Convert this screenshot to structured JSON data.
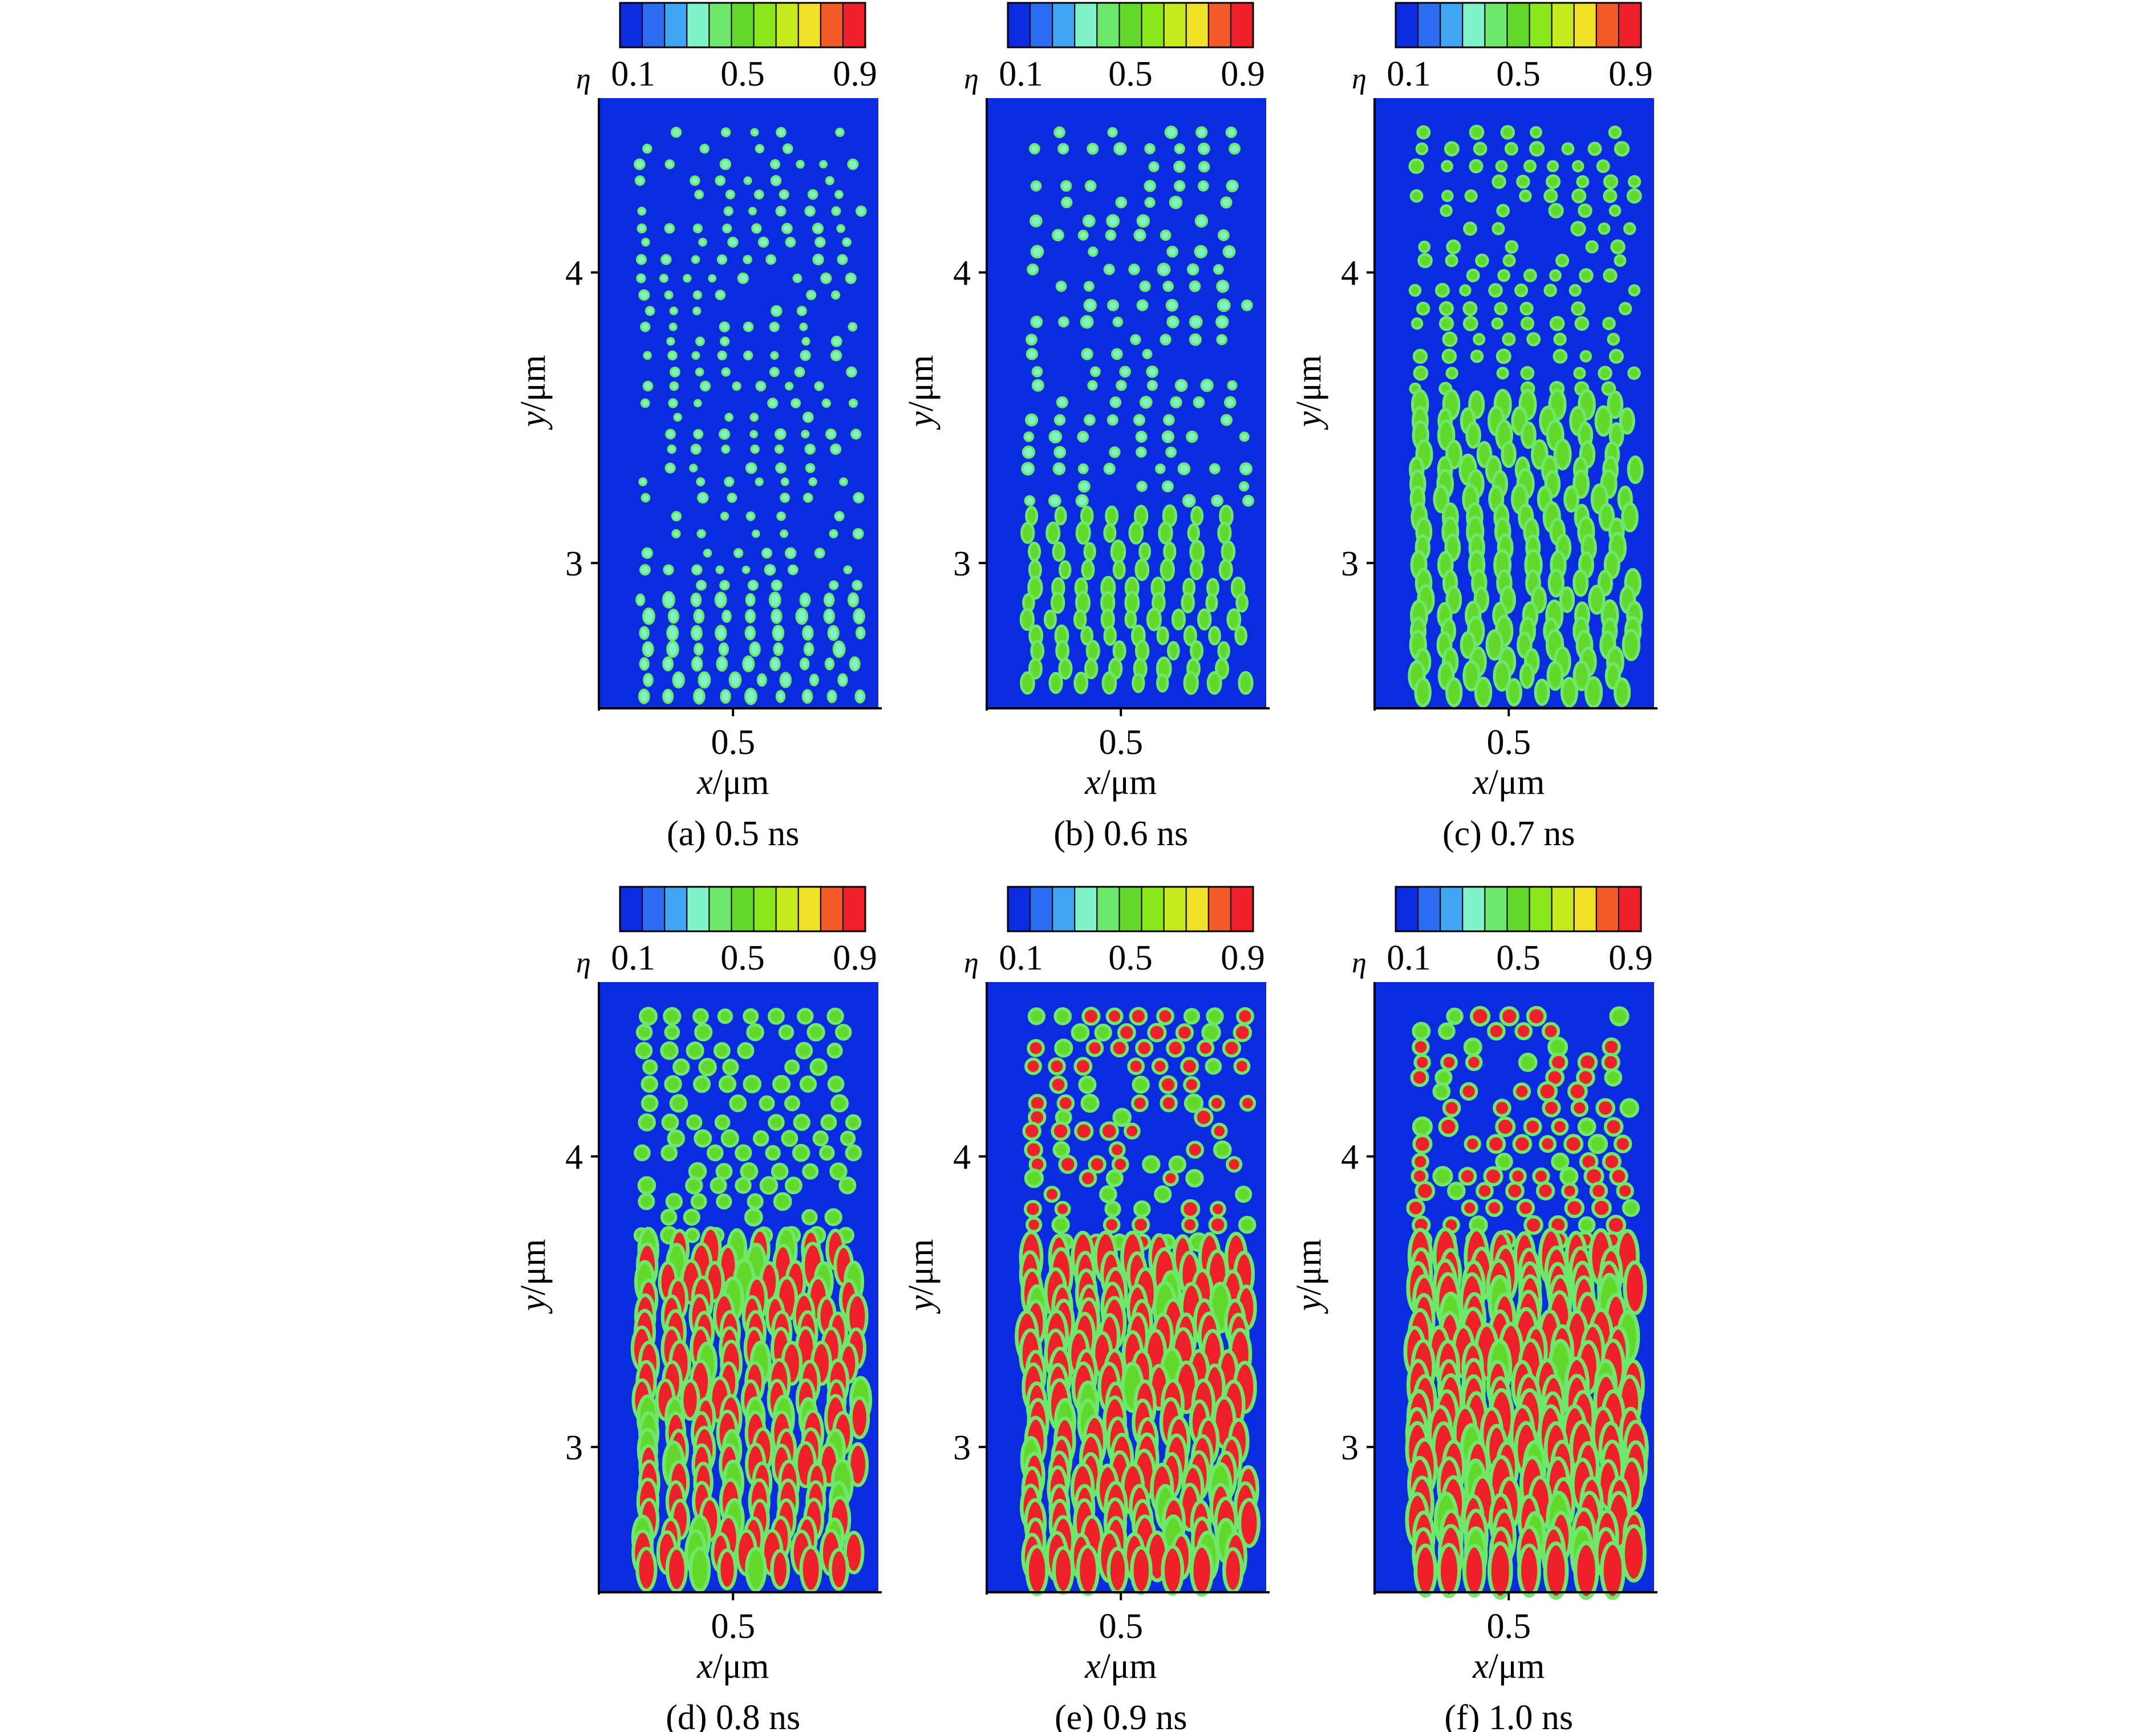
{
  "colors": {
    "background": "#0a2be0",
    "colormap": [
      "#0a2be0",
      "#2a6cf2",
      "#3fa4f2",
      "#7ef2c8",
      "#6ee86a",
      "#62d92a",
      "#8ae81a",
      "#c6ea1c",
      "#f0e028",
      "#f25a28",
      "#f0202a"
    ]
  },
  "chart_data": [
    {
      "type": "heatmap",
      "caption": "(a) 0.5 ns",
      "time_ns": 0.5,
      "variable": "η",
      "colorbar_ticks": [
        "0.1",
        "0.5",
        "0.9"
      ],
      "x_ticks": [
        "0.5"
      ],
      "y_ticks": [
        "3",
        "4"
      ],
      "xlabel": "x/μm",
      "ylabel": "y/μm",
      "ylim": [
        2.5,
        4.6
      ],
      "grain_front_y": 2.9,
      "fill_level": 0.25
    },
    {
      "type": "heatmap",
      "caption": "(b) 0.6 ns",
      "time_ns": 0.6,
      "variable": "η",
      "colorbar_ticks": [
        "0.1",
        "0.5",
        "0.9"
      ],
      "x_ticks": [
        "0.5"
      ],
      "y_ticks": [
        "3",
        "4"
      ],
      "xlabel": "x/μm",
      "ylabel": "y/μm",
      "ylim": [
        2.5,
        4.6
      ],
      "grain_front_y": 3.2,
      "fill_level": 0.4
    },
    {
      "type": "heatmap",
      "caption": "(c) 0.7 ns",
      "time_ns": 0.7,
      "variable": "η",
      "colorbar_ticks": [
        "0.1",
        "0.5",
        "0.9"
      ],
      "x_ticks": [
        "0.5"
      ],
      "y_ticks": [
        "3",
        "4"
      ],
      "xlabel": "x/μm",
      "ylabel": "y/μm",
      "ylim": [
        2.5,
        4.6
      ],
      "grain_front_y": 3.6,
      "fill_level": 0.55
    },
    {
      "type": "heatmap",
      "caption": "(d) 0.8 ns",
      "time_ns": 0.8,
      "variable": "η",
      "colorbar_ticks": [
        "0.1",
        "0.5",
        "0.9"
      ],
      "x_ticks": [
        "0.5"
      ],
      "y_ticks": [
        "3",
        "4"
      ],
      "xlabel": "x/μm",
      "ylabel": "y/μm",
      "ylim": [
        2.5,
        4.6
      ],
      "grain_front_y": 3.7,
      "fill_level": 0.8
    },
    {
      "type": "heatmap",
      "caption": "(e) 0.9 ns",
      "time_ns": 0.9,
      "variable": "η",
      "colorbar_ticks": [
        "0.1",
        "0.5",
        "0.9"
      ],
      "x_ticks": [
        "0.5"
      ],
      "y_ticks": [
        "3",
        "4"
      ],
      "xlabel": "x/μm",
      "ylabel": "y/μm",
      "ylim": [
        2.5,
        4.6
      ],
      "grain_front_y": 3.7,
      "fill_level": 0.88
    },
    {
      "type": "heatmap",
      "caption": "(f) 1.0 ns",
      "time_ns": 1.0,
      "variable": "η",
      "colorbar_ticks": [
        "0.1",
        "0.5",
        "0.9"
      ],
      "x_ticks": [
        "0.5"
      ],
      "y_ticks": [
        "3",
        "4"
      ],
      "xlabel": "x/μm",
      "ylabel": "y/μm",
      "ylim": [
        2.5,
        4.6
      ],
      "grain_front_y": 3.7,
      "fill_level": 0.95
    }
  ]
}
